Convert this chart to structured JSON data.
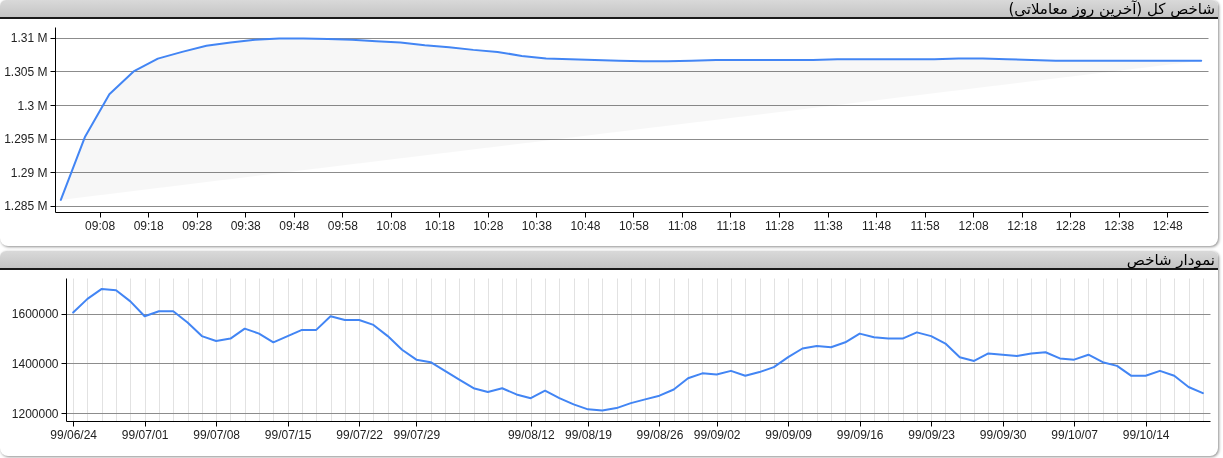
{
  "chart_data": [
    {
      "type": "line",
      "title": "شاخص کل (آخرین روز معاملاتی)",
      "x": [
        9.0,
        9.0833,
        9.1667,
        9.25,
        9.3333,
        9.4167,
        9.5,
        9.5833,
        9.6667,
        9.75,
        9.8333,
        9.9167,
        10.0,
        10.0833,
        10.1667,
        10.25,
        10.3333,
        10.4167,
        10.5,
        10.5833,
        10.6667,
        10.75,
        10.8333,
        10.9167,
        11.0,
        11.0833,
        11.1667,
        11.25,
        11.3333,
        11.4167,
        11.5,
        11.5833,
        11.6667,
        11.75,
        11.8333,
        11.9167,
        12.0,
        12.0833,
        12.1667,
        12.25,
        12.3333,
        12.4167,
        12.5,
        12.5833,
        12.6667,
        12.75,
        12.8333,
        12.9167
      ],
      "series": [
        {
          "color": "#4285f4",
          "values": [
            1285900,
            1295300,
            1301600,
            1305000,
            1306900,
            1307900,
            1308800,
            1309300,
            1309700,
            1309900,
            1309900,
            1309800,
            1309700,
            1309500,
            1309300,
            1308900,
            1308600,
            1308200,
            1307900,
            1307300,
            1306900,
            1306800,
            1306700,
            1306600,
            1306500,
            1306500,
            1306600,
            1306700,
            1306700,
            1306700,
            1306700,
            1306700,
            1306800,
            1306800,
            1306800,
            1306800,
            1306800,
            1306900,
            1306900,
            1306800,
            1306700,
            1306600,
            1306600,
            1306600,
            1306600,
            1306600,
            1306600,
            1306600
          ]
        }
      ],
      "xlim": [
        8.98,
        12.94
      ],
      "xticks": [
        {
          "value": 9.1333,
          "label": "09:08"
        },
        {
          "value": 9.3,
          "label": "09:18"
        },
        {
          "value": 9.4667,
          "label": "09:28"
        },
        {
          "value": 9.6333,
          "label": "09:38"
        },
        {
          "value": 9.8,
          "label": "09:48"
        },
        {
          "value": 9.9667,
          "label": "09:58"
        },
        {
          "value": 10.1333,
          "label": "10:08"
        },
        {
          "value": 10.3,
          "label": "10:18"
        },
        {
          "value": 10.4667,
          "label": "10:28"
        },
        {
          "value": 10.6333,
          "label": "10:38"
        },
        {
          "value": 10.8,
          "label": "10:48"
        },
        {
          "value": 10.9667,
          "label": "10:58"
        },
        {
          "value": 11.1333,
          "label": "11:08"
        },
        {
          "value": 11.3,
          "label": "11:18"
        },
        {
          "value": 11.4667,
          "label": "11:28"
        },
        {
          "value": 11.6333,
          "label": "11:38"
        },
        {
          "value": 11.8,
          "label": "11:48"
        },
        {
          "value": 11.9667,
          "label": "11:58"
        },
        {
          "value": 12.1333,
          "label": "12:08"
        },
        {
          "value": 12.3,
          "label": "12:18"
        },
        {
          "value": 12.4667,
          "label": "12:28"
        },
        {
          "value": 12.6333,
          "label": "12:38"
        },
        {
          "value": 12.8,
          "label": "12:48"
        }
      ],
      "ylim": [
        1284100,
        1311600
      ],
      "yticks": [
        {
          "value": 1285000,
          "label": "1.285 M"
        },
        {
          "value": 1290000,
          "label": "1.29 M"
        },
        {
          "value": 1295000,
          "label": "1.295 M"
        },
        {
          "value": 1300000,
          "label": "1.3 M"
        },
        {
          "value": 1305000,
          "label": "1.305 M"
        },
        {
          "value": 1310000,
          "label": "1.31 M"
        }
      ],
      "grid": "y"
    },
    {
      "type": "line",
      "title": "نمودار شاخص",
      "categories": [
        "99/06/24",
        null,
        null,
        null,
        null,
        "99/07/01",
        null,
        null,
        null,
        null,
        "99/07/08",
        null,
        null,
        null,
        null,
        "99/07/15",
        null,
        null,
        null,
        null,
        "99/07/22",
        null,
        null,
        null,
        "99/07/29",
        null,
        null,
        null,
        null,
        null,
        null,
        null,
        "99/08/12",
        null,
        null,
        null,
        "99/08/19",
        null,
        null,
        null,
        null,
        "99/08/26",
        null,
        null,
        null,
        "99/09/02",
        null,
        null,
        null,
        null,
        "99/09/09",
        null,
        null,
        null,
        null,
        "99/09/16",
        null,
        null,
        null,
        null,
        "99/09/23",
        null,
        null,
        null,
        null,
        "99/09/30",
        null,
        null,
        null,
        null,
        "99/10/07",
        null,
        null,
        null,
        null,
        "99/10/14",
        null,
        null,
        null,
        null
      ],
      "series": [
        {
          "color": "#4285f4",
          "values": [
            1605000,
            1660000,
            1700000,
            1695000,
            1650000,
            1590000,
            1610000,
            1610000,
            1565000,
            1510000,
            1490000,
            1500000,
            1540000,
            1520000,
            1485000,
            1510000,
            1535000,
            1535000,
            1590000,
            1575000,
            1575000,
            1555000,
            1510000,
            1455000,
            1415000,
            1405000,
            1370000,
            1335000,
            1300000,
            1285000,
            1300000,
            1275000,
            1260000,
            1290000,
            1260000,
            1235000,
            1215000,
            1210000,
            1220000,
            1240000,
            1255000,
            1270000,
            1295000,
            1340000,
            1360000,
            1355000,
            1370000,
            1350000,
            1365000,
            1385000,
            1425000,
            1460000,
            1470000,
            1465000,
            1485000,
            1520000,
            1505000,
            1500000,
            1500000,
            1525000,
            1510000,
            1480000,
            1425000,
            1410000,
            1440000,
            1435000,
            1430000,
            1440000,
            1445000,
            1420000,
            1415000,
            1435000,
            1405000,
            1390000,
            1350000,
            1350000,
            1370000,
            1350000,
            1305000,
            1280000
          ]
        }
      ],
      "ylim": [
        1168000,
        1744000
      ],
      "yticks": [
        1200000,
        1400000,
        1600000
      ],
      "grid": true
    }
  ]
}
